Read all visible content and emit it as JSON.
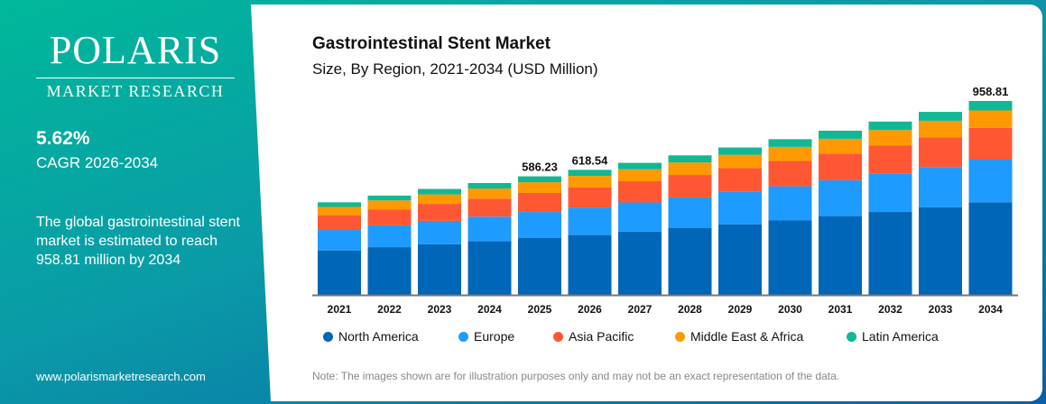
{
  "brand": {
    "name": "POLARIS",
    "sub": "MARKET RESEARCH",
    "url": "www.polarismarketresearch.com"
  },
  "stats": {
    "cagr_value": "5.62%",
    "cagr_label": "CAGR 2026-2034",
    "description": "The global gastrointestinal stent market is estimated to reach 958.81 million by 2034"
  },
  "note": "Note: The images shown are for illustration purposes only and may not be an exact representation of the data.",
  "chart_data": {
    "type": "bar",
    "stacked": true,
    "title": "Gastrointestinal Stent Market",
    "subtitle": "Size, By Region, 2021-2034 (USD Million)",
    "categories": [
      "2021",
      "2022",
      "2023",
      "2024",
      "2025",
      "2026",
      "2027",
      "2028",
      "2029",
      "2030",
      "2031",
      "2032",
      "2033",
      "2034"
    ],
    "totals": [
      458,
      491,
      524,
      553,
      586.23,
      618.54,
      653,
      690,
      729,
      770,
      812,
      857,
      905,
      958.81
    ],
    "data_labels": {
      "2025": "586.23",
      "2026": "618.54",
      "2034": "958.81"
    },
    "series": [
      {
        "name": "North America",
        "color": "#0066b8",
        "values": [
          220,
          236,
          251,
          265,
          281,
          296,
          313,
          330,
          349,
          368,
          388,
          410,
          433,
          458
        ]
      },
      {
        "name": "Europe",
        "color": "#1e9bff",
        "values": [
          101,
          108,
          115,
          122,
          129,
          136,
          144,
          152,
          160,
          169,
          179,
          189,
          199,
          211
        ]
      },
      {
        "name": "Asia Pacific",
        "color": "#ff5733",
        "values": [
          73,
          79,
          84,
          89,
          94,
          100,
          105,
          111,
          118,
          125,
          132,
          139,
          147,
          157
        ]
      },
      {
        "name": "Middle East & Africa",
        "color": "#ff9900",
        "values": [
          41,
          44,
          47,
          50,
          53,
          56,
          59,
          62,
          66,
          70,
          73,
          77,
          82,
          86
        ]
      },
      {
        "name": "Latin America",
        "color": "#12b894",
        "values": [
          23,
          24,
          27,
          27,
          29.23,
          30.54,
          32,
          35,
          36,
          38,
          40,
          42,
          44,
          46.81
        ]
      }
    ],
    "legend_position": "bottom",
    "grid": false
  }
}
